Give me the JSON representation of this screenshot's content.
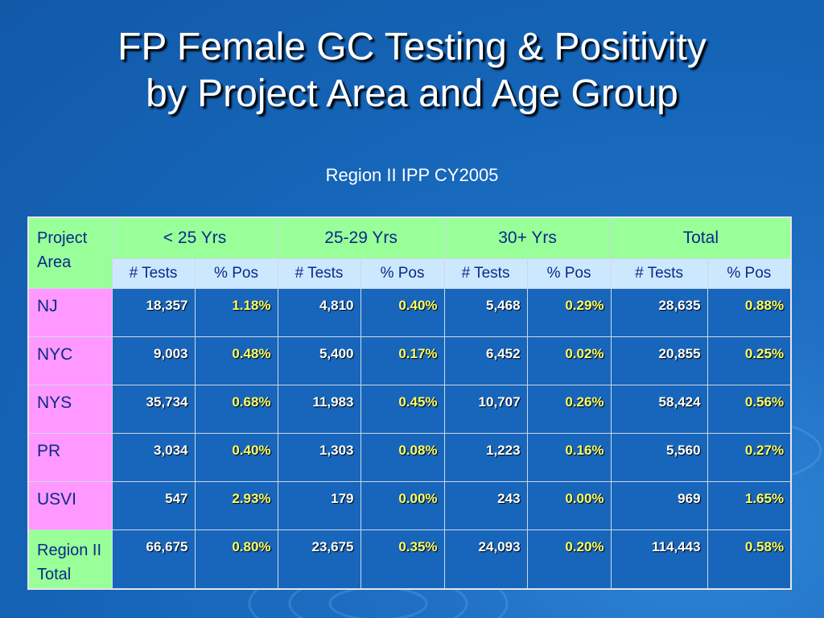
{
  "title_line1": "FP Female GC Testing & Positivity",
  "title_line2": "by Project Area and Age Group",
  "subtitle": "Region II IPP CY2005",
  "table": {
    "corner": "Project Area",
    "groups": [
      "< 25 Yrs",
      "25-29 Yrs",
      "30+ Yrs",
      "Total"
    ],
    "subheaders": [
      "# Tests",
      "% Pos",
      "# Tests",
      "% Pos",
      "# Tests",
      "% Pos",
      "# Tests",
      "% Pos"
    ],
    "rows": [
      {
        "area": "NJ",
        "cells": [
          "18,357",
          "1.18%",
          "4,810",
          "0.40%",
          "5,468",
          "0.29%",
          "28,635",
          "0.88%"
        ]
      },
      {
        "area": "NYC",
        "cells": [
          "9,003",
          "0.48%",
          "5,400",
          "0.17%",
          "6,452",
          "0.02%",
          "20,855",
          "0.25%"
        ]
      },
      {
        "area": "NYS",
        "cells": [
          "35,734",
          "0.68%",
          "11,983",
          "0.45%",
          "10,707",
          "0.26%",
          "58,424",
          "0.56%"
        ]
      },
      {
        "area": "PR",
        "cells": [
          "3,034",
          "0.40%",
          "1,303",
          "0.08%",
          "1,223",
          "0.16%",
          "5,560",
          "0.27%"
        ]
      },
      {
        "area": "USVI",
        "cells": [
          "547",
          "2.93%",
          "179",
          "0.00%",
          "243",
          "0.00%",
          "969",
          "1.65%"
        ]
      },
      {
        "area": "Region II Total",
        "cells": [
          "66,675",
          "0.80%",
          "23,675",
          "0.35%",
          "24,093",
          "0.20%",
          "114,443",
          "0.58%"
        ]
      }
    ]
  },
  "colors": {
    "background": "#1565b8",
    "header_green": "#99ff99",
    "subheader_blue": "#cce8ff",
    "row_pink": "#ff99ff",
    "percent_yellow": "#ffff66"
  }
}
